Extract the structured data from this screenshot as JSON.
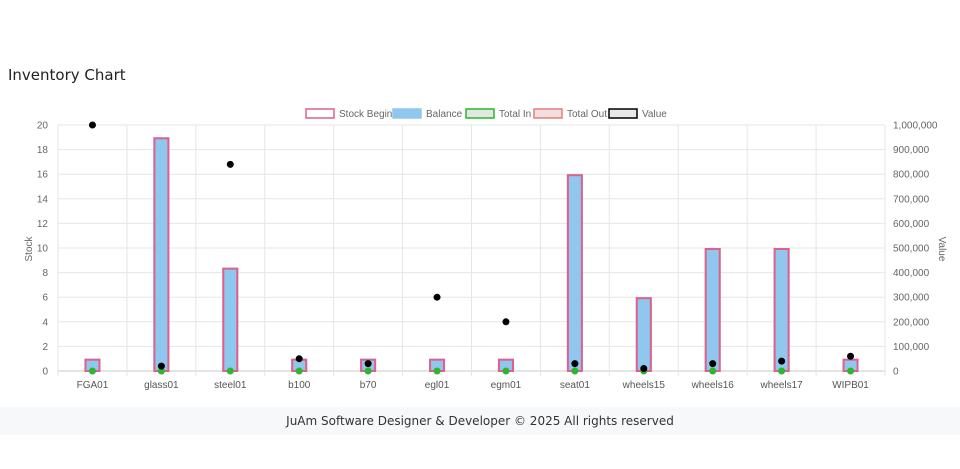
{
  "page": {
    "title": "Inventory Chart"
  },
  "footer": {
    "text": "JuAm Software Designer & Developer © 2025 All rights reserved"
  },
  "chart_data": {
    "type": "bar",
    "categories": [
      "FGA01",
      "glass01",
      "steel01",
      "b100",
      "b70",
      "egl01",
      "egm01",
      "seat01",
      "wheels15",
      "wheels16",
      "wheels17",
      "WIPB01"
    ],
    "series": [
      {
        "name": "Stock Begin",
        "type": "bar",
        "axis": "left",
        "values": [
          1,
          19,
          8.4,
          1,
          1,
          1,
          1,
          16,
          6,
          10,
          10,
          1
        ],
        "fill": "transparent",
        "stroke": "#e0608a"
      },
      {
        "name": "Balance",
        "type": "bar",
        "axis": "left",
        "values": [
          1,
          19,
          8.4,
          1,
          1,
          1,
          1,
          16,
          6,
          10,
          10,
          1
        ],
        "fill": "#8fc7ee",
        "stroke": "#8fc7ee"
      },
      {
        "name": "Total In",
        "type": "point",
        "axis": "left",
        "values": [
          0,
          0,
          0,
          0,
          0,
          0,
          0,
          0,
          0,
          0,
          0,
          0
        ],
        "fill": "#dfe9df",
        "stroke": "#2fb52f"
      },
      {
        "name": "Total Out",
        "type": "point",
        "axis": "left",
        "values": [
          0,
          0,
          0,
          0,
          0,
          0,
          0,
          0,
          0,
          0,
          0,
          0
        ],
        "fill": "#f2dede",
        "stroke": "#e08080"
      },
      {
        "name": "Value",
        "type": "point",
        "axis": "right",
        "values": [
          1000000,
          20000,
          840000,
          50000,
          30000,
          300000,
          200000,
          30000,
          10000,
          30000,
          40000,
          60000
        ],
        "fill": "#000000",
        "stroke": "#000000"
      }
    ],
    "ylabel": "Stock",
    "y2label": "Value",
    "ylim": [
      0,
      20
    ],
    "yticks": [
      "0",
      "2",
      "4",
      "6",
      "8",
      "10",
      "12",
      "14",
      "16",
      "18",
      "20"
    ],
    "y2lim": [
      0,
      1000000
    ],
    "y2ticks": [
      "0",
      "100,000",
      "200,000",
      "300,000",
      "400,000",
      "500,000",
      "600,000",
      "700,000",
      "800,000",
      "900,000",
      "1,000,000"
    ],
    "grid": true,
    "legend": "top-center"
  }
}
